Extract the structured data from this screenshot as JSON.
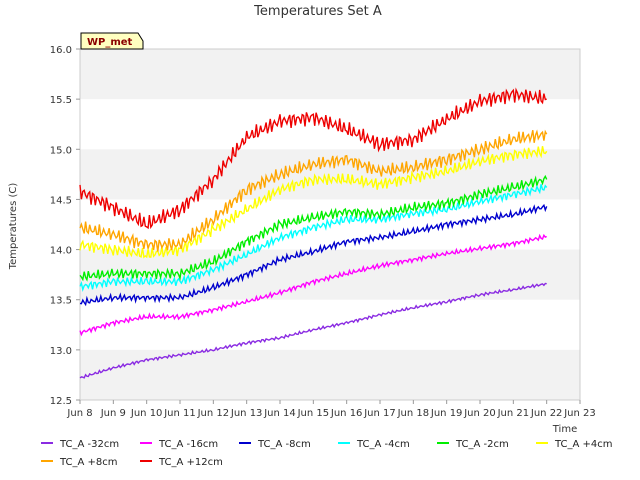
{
  "chart_data": {
    "type": "line",
    "title": "Temperatures Set A",
    "xlabel": "Time",
    "ylabel": "Temperatures (C)",
    "badge": "WP_met",
    "xlim": [
      "2024-06-08",
      "2024-06-23"
    ],
    "ylim": [
      12.5,
      16.0
    ],
    "x_tick_labels": [
      "Jun 8",
      "Jun 9",
      "Jun 10",
      "Jun 11",
      "Jun 12",
      "Jun 13",
      "Jun 14",
      "Jun 15",
      "Jun 16",
      "Jun 17",
      "Jun 18",
      "Jun 19",
      "Jun 20",
      "Jun 21",
      "Jun 22",
      "Jun 23"
    ],
    "y_ticks": [
      12.5,
      13.0,
      13.5,
      14.0,
      14.5,
      15.0,
      15.5,
      16.0
    ],
    "y_tick_labels": [
      "12.5",
      "13.0",
      "13.5",
      "14.0",
      "14.5",
      "15.0",
      "15.5",
      "16.0"
    ],
    "grid": "alternating horizontal bands",
    "legend_position": "bottom",
    "x": [
      "2024-06-08",
      "2024-06-09",
      "2024-06-10",
      "2024-06-11",
      "2024-06-12",
      "2024-06-13",
      "2024-06-14",
      "2024-06-15",
      "2024-06-16",
      "2024-06-17",
      "2024-06-18",
      "2024-06-19",
      "2024-06-20",
      "2024-06-21",
      "2024-06-22"
    ],
    "series": [
      {
        "name": "TC_A -32cm",
        "color": "#8a2be2",
        "values": [
          12.72,
          12.82,
          12.9,
          12.95,
          13.0,
          13.07,
          13.12,
          13.2,
          13.27,
          13.35,
          13.42,
          13.48,
          13.55,
          13.6,
          13.66
        ]
      },
      {
        "name": "TC_A -16cm",
        "color": "#ff00ff",
        "values": [
          13.17,
          13.27,
          13.33,
          13.33,
          13.4,
          13.48,
          13.57,
          13.68,
          13.76,
          13.84,
          13.9,
          13.96,
          14.01,
          14.06,
          14.13
        ]
      },
      {
        "name": "TC_A -8cm",
        "color": "#0000cd",
        "values": [
          13.47,
          13.52,
          13.52,
          13.52,
          13.62,
          13.75,
          13.9,
          13.98,
          14.08,
          14.12,
          14.18,
          14.25,
          14.3,
          14.35,
          14.43
        ]
      },
      {
        "name": "TC_A -4cm",
        "color": "#00ffff",
        "values": [
          13.63,
          13.68,
          13.68,
          13.68,
          13.8,
          13.95,
          14.12,
          14.22,
          14.3,
          14.3,
          14.36,
          14.4,
          14.48,
          14.55,
          14.62
        ]
      },
      {
        "name": "TC_A -2cm",
        "color": "#00ee00",
        "values": [
          13.73,
          13.76,
          13.76,
          13.76,
          13.88,
          14.08,
          14.25,
          14.32,
          14.38,
          14.35,
          14.42,
          14.46,
          14.55,
          14.62,
          14.7
        ]
      },
      {
        "name": "TC_A +4cm",
        "color": "#ffff00",
        "values": [
          14.05,
          14.0,
          13.95,
          14.0,
          14.2,
          14.4,
          14.6,
          14.7,
          14.7,
          14.65,
          14.72,
          14.78,
          14.88,
          14.95,
          14.98
        ]
      },
      {
        "name": "TC_A +8cm",
        "color": "#ffa500",
        "values": [
          14.22,
          14.15,
          14.05,
          14.05,
          14.3,
          14.6,
          14.75,
          14.85,
          14.9,
          14.78,
          14.82,
          14.9,
          15.0,
          15.1,
          15.15
        ]
      },
      {
        "name": "TC_A +12cm",
        "color": "#ee0000",
        "values": [
          14.58,
          14.42,
          14.25,
          14.4,
          14.7,
          15.12,
          15.28,
          15.32,
          15.2,
          15.05,
          15.1,
          15.3,
          15.48,
          15.55,
          15.5
        ]
      }
    ]
  }
}
